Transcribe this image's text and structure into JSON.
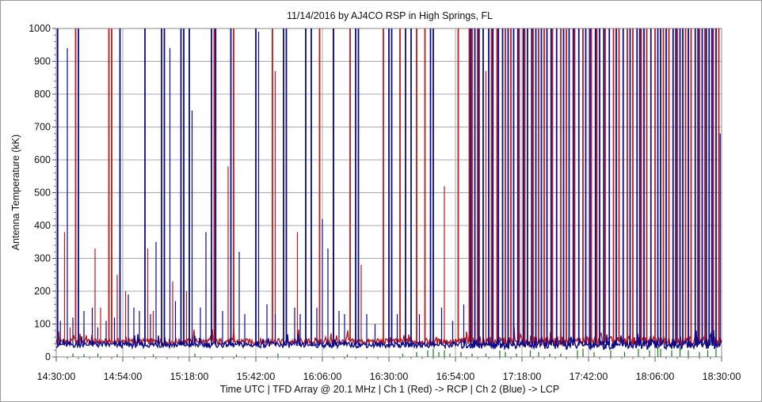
{
  "chart_data": {
    "type": "line",
    "title": "11/14/2016  by  AJ4CO RSP  in  High Springs, FL",
    "ylabel": "Antenna Temperature (kK)",
    "xlabel": "Time UTC    |    TFD Array @ 20.1 MHz    |    Ch 1 (Red) -> RCP    |    Ch 2 (Blue)  -> LCP",
    "x_range": [
      "14:30:00",
      "18:30:00"
    ],
    "ylim": [
      0,
      1000
    ],
    "x_tick_labels": [
      "14:30:00",
      "14:54:00",
      "15:18:00",
      "15:42:00",
      "16:06:00",
      "16:30:00",
      "16:54:00",
      "17:18:00",
      "17:42:00",
      "18:06:00",
      "18:30:00"
    ],
    "y_tick_labels": [
      "0",
      "100",
      "200",
      "300",
      "400",
      "500",
      "600",
      "700",
      "800",
      "900",
      "1000"
    ],
    "grid": true,
    "series": [
      {
        "color": "#c01818",
        "baseline": 45,
        "spikes": [
          [
            "14:33:00",
            380
          ],
          [
            "14:35:00",
            90
          ],
          [
            "14:37:00",
            1000
          ],
          [
            "14:40:00",
            90
          ],
          [
            "14:44:00",
            330
          ],
          [
            "14:46:00",
            150
          ],
          [
            "14:49:00",
            1000
          ],
          [
            "14:50:00",
            1000
          ],
          [
            "14:52:00",
            250
          ],
          [
            "14:55:00",
            200
          ],
          [
            "15:03:00",
            330
          ],
          [
            "15:05:00",
            140
          ],
          [
            "15:12:00",
            230
          ],
          [
            "15:17:00",
            200
          ],
          [
            "15:27:00",
            1000
          ],
          [
            "15:32:00",
            580
          ],
          [
            "15:34:00",
            1000
          ],
          [
            "15:48:00",
            1000
          ],
          [
            "15:49:00",
            870
          ],
          [
            "15:57:00",
            380
          ],
          [
            "16:05:00",
            1000
          ],
          [
            "16:10:00",
            1000
          ],
          [
            "16:16:00",
            1000
          ],
          [
            "16:20:00",
            280
          ],
          [
            "16:28:00",
            1000
          ],
          [
            "16:34:00",
            1000
          ],
          [
            "16:40:00",
            1000
          ],
          [
            "16:43:00",
            1000
          ],
          [
            "16:50:00",
            520
          ],
          [
            "16:55:00",
            1000
          ],
          [
            "16:59:00",
            1000
          ],
          [
            "17:00:00",
            1000
          ],
          [
            "17:02:00",
            1000
          ],
          [
            "17:05:00",
            870
          ],
          [
            "17:07:00",
            1000
          ],
          [
            "17:09:00",
            1000
          ],
          [
            "17:12:00",
            1000
          ],
          [
            "17:14:00",
            1000
          ],
          [
            "17:17:00",
            1000
          ],
          [
            "17:19:00",
            1000
          ],
          [
            "17:22:00",
            1000
          ],
          [
            "17:24:00",
            1000
          ],
          [
            "17:26:00",
            1000
          ],
          [
            "17:29:00",
            1000
          ],
          [
            "17:32:00",
            1000
          ],
          [
            "17:34:00",
            1000
          ],
          [
            "17:37:00",
            1000
          ],
          [
            "17:40:00",
            1000
          ],
          [
            "17:43:00",
            1000
          ],
          [
            "17:45:00",
            1000
          ],
          [
            "17:48:00",
            1000
          ],
          [
            "17:51:00",
            1000
          ],
          [
            "17:53:00",
            1000
          ],
          [
            "17:56:00",
            1000
          ],
          [
            "17:58:00",
            1000
          ],
          [
            "18:01:00",
            1000
          ],
          [
            "18:03:00",
            1000
          ],
          [
            "18:06:00",
            1000
          ],
          [
            "18:09:00",
            1000
          ],
          [
            "18:11:00",
            1000
          ],
          [
            "18:14:00",
            1000
          ],
          [
            "18:17:00",
            1000
          ],
          [
            "18:19:00",
            1000
          ],
          [
            "18:22:00",
            1000
          ],
          [
            "18:24:00",
            1000
          ],
          [
            "18:27:00",
            1000
          ],
          [
            "18:29:00",
            1000
          ]
        ]
      },
      {
        "color": "#0a0a8c",
        "baseline": 35,
        "spikes": [
          [
            "14:30:30",
            1000
          ],
          [
            "14:31:30",
            110
          ],
          [
            "14:34:00",
            940
          ],
          [
            "14:36:00",
            120
          ],
          [
            "14:38:00",
            1000
          ],
          [
            "14:40:00",
            140
          ],
          [
            "14:43:00",
            150
          ],
          [
            "14:45:00",
            90
          ],
          [
            "14:48:00",
            110
          ],
          [
            "14:51:00",
            120
          ],
          [
            "14:53:00",
            1000
          ],
          [
            "14:56:00",
            190
          ],
          [
            "14:58:00",
            150
          ],
          [
            "15:00:00",
            140
          ],
          [
            "15:02:00",
            1000
          ],
          [
            "15:04:00",
            130
          ],
          [
            "15:06:00",
            350
          ],
          [
            "15:08:00",
            1000
          ],
          [
            "15:09:00",
            1000
          ],
          [
            "15:11:00",
            940
          ],
          [
            "15:13:00",
            170
          ],
          [
            "15:15:00",
            1000
          ],
          [
            "15:16:00",
            1000
          ],
          [
            "15:18:00",
            1000
          ],
          [
            "15:19:00",
            750
          ],
          [
            "15:22:00",
            150
          ],
          [
            "15:24:00",
            380
          ],
          [
            "15:26:00",
            1000
          ],
          [
            "15:27:30",
            1000
          ],
          [
            "15:30:00",
            140
          ],
          [
            "15:33:00",
            1000
          ],
          [
            "15:36:00",
            320
          ],
          [
            "15:38:00",
            130
          ],
          [
            "15:42:00",
            1000
          ],
          [
            "15:43:00",
            990
          ],
          [
            "15:46:00",
            160
          ],
          [
            "15:49:00",
            130
          ],
          [
            "15:52:00",
            1000
          ],
          [
            "15:53:00",
            1000
          ],
          [
            "15:56:00",
            150
          ],
          [
            "15:58:00",
            130
          ],
          [
            "16:00:00",
            1000
          ],
          [
            "16:02:00",
            1000
          ],
          [
            "16:04:00",
            150
          ],
          [
            "16:06:00",
            420
          ],
          [
            "16:08:00",
            330
          ],
          [
            "16:10:00",
            1000
          ],
          [
            "16:12:00",
            140
          ],
          [
            "16:14:00",
            130
          ],
          [
            "16:18:00",
            1000
          ],
          [
            "16:19:00",
            1000
          ],
          [
            "16:22:00",
            130
          ],
          [
            "16:25:00",
            100
          ],
          [
            "16:30:00",
            1000
          ],
          [
            "16:31:00",
            1000
          ],
          [
            "16:33:00",
            130
          ],
          [
            "16:36:00",
            1000
          ],
          [
            "16:38:00",
            1000
          ],
          [
            "16:41:00",
            130
          ],
          [
            "16:45:00",
            1000
          ],
          [
            "16:46:00",
            1000
          ],
          [
            "16:49:00",
            150
          ],
          [
            "16:53:00",
            110
          ],
          [
            "16:57:00",
            160
          ],
          [
            "16:59:30",
            1000
          ],
          [
            "17:01:00",
            1000
          ],
          [
            "17:02:30",
            1000
          ],
          [
            "17:04:00",
            1000
          ],
          [
            "17:06:00",
            1000
          ],
          [
            "17:07:30",
            1000
          ],
          [
            "17:09:30",
            1000
          ],
          [
            "17:11:00",
            1000
          ],
          [
            "17:13:00",
            1000
          ],
          [
            "17:15:00",
            1000
          ],
          [
            "17:16:30",
            1000
          ],
          [
            "17:18:30",
            1000
          ],
          [
            "17:20:00",
            1000
          ],
          [
            "17:21:30",
            1000
          ],
          [
            "17:23:00",
            1000
          ],
          [
            "17:25:00",
            1000
          ],
          [
            "17:27:00",
            1000
          ],
          [
            "17:28:30",
            1000
          ],
          [
            "17:30:30",
            1000
          ],
          [
            "17:33:00",
            1000
          ],
          [
            "17:35:00",
            1000
          ],
          [
            "17:36:30",
            1000
          ],
          [
            "17:38:30",
            1000
          ],
          [
            "17:41:00",
            1000
          ],
          [
            "17:42:30",
            1000
          ],
          [
            "17:44:30",
            1000
          ],
          [
            "17:46:00",
            1000
          ],
          [
            "17:47:30",
            1000
          ],
          [
            "17:49:30",
            1000
          ],
          [
            "17:52:00",
            1000
          ],
          [
            "17:54:30",
            1000
          ],
          [
            "17:57:00",
            1000
          ],
          [
            "17:59:30",
            1000
          ],
          [
            "18:00:30",
            1000
          ],
          [
            "18:02:00",
            1000
          ],
          [
            "18:04:30",
            1000
          ],
          [
            "18:07:00",
            1000
          ],
          [
            "18:08:00",
            1000
          ],
          [
            "18:10:00",
            1000
          ],
          [
            "18:12:30",
            1000
          ],
          [
            "18:13:30",
            1000
          ],
          [
            "18:15:00",
            1000
          ],
          [
            "18:16:00",
            1000
          ],
          [
            "18:18:00",
            1000
          ],
          [
            "18:20:30",
            1000
          ],
          [
            "18:21:30",
            1000
          ],
          [
            "18:23:00",
            1000
          ],
          [
            "18:24:30",
            1000
          ],
          [
            "18:25:30",
            1000
          ],
          [
            "18:26:30",
            1000
          ],
          [
            "18:28:00",
            1000
          ],
          [
            "18:29:30",
            680
          ]
        ]
      },
      {
        "color": "#1a7a1a",
        "baseline": 0,
        "spikes": [
          [
            "14:36:00",
            10
          ],
          [
            "14:40:00",
            8
          ],
          [
            "14:45:00",
            10
          ],
          [
            "14:52:00",
            8
          ],
          [
            "15:05:00",
            8
          ],
          [
            "15:20:00",
            10
          ],
          [
            "15:35:00",
            8
          ],
          [
            "15:50:00",
            10
          ],
          [
            "16:15:00",
            8
          ],
          [
            "16:35:00",
            10
          ],
          [
            "16:40:00",
            15
          ],
          [
            "16:44:00",
            20
          ],
          [
            "16:46:00",
            25
          ],
          [
            "16:48:00",
            15
          ],
          [
            "16:50:00",
            20
          ],
          [
            "16:52:00",
            10
          ],
          [
            "16:56:00",
            15
          ],
          [
            "17:00:00",
            10
          ],
          [
            "17:05:00",
            10
          ],
          [
            "17:10:00",
            20
          ],
          [
            "17:12:00",
            15
          ],
          [
            "17:16:00",
            10
          ],
          [
            "17:21:00",
            20
          ],
          [
            "17:24:00",
            15
          ],
          [
            "17:28:00",
            10
          ],
          [
            "17:32:00",
            10
          ],
          [
            "17:38:00",
            20
          ],
          [
            "17:40:00",
            25
          ],
          [
            "17:44:00",
            15
          ],
          [
            "17:50:00",
            20
          ],
          [
            "17:55:00",
            15
          ],
          [
            "18:00:00",
            25
          ],
          [
            "18:04:00",
            20
          ],
          [
            "18:07:00",
            30
          ],
          [
            "18:08:00",
            25
          ],
          [
            "18:12:00",
            20
          ],
          [
            "18:15:00",
            25
          ],
          [
            "18:18:00",
            20
          ],
          [
            "18:22:00",
            15
          ],
          [
            "18:25:00",
            20
          ],
          [
            "18:28:00",
            25
          ]
        ]
      }
    ]
  }
}
